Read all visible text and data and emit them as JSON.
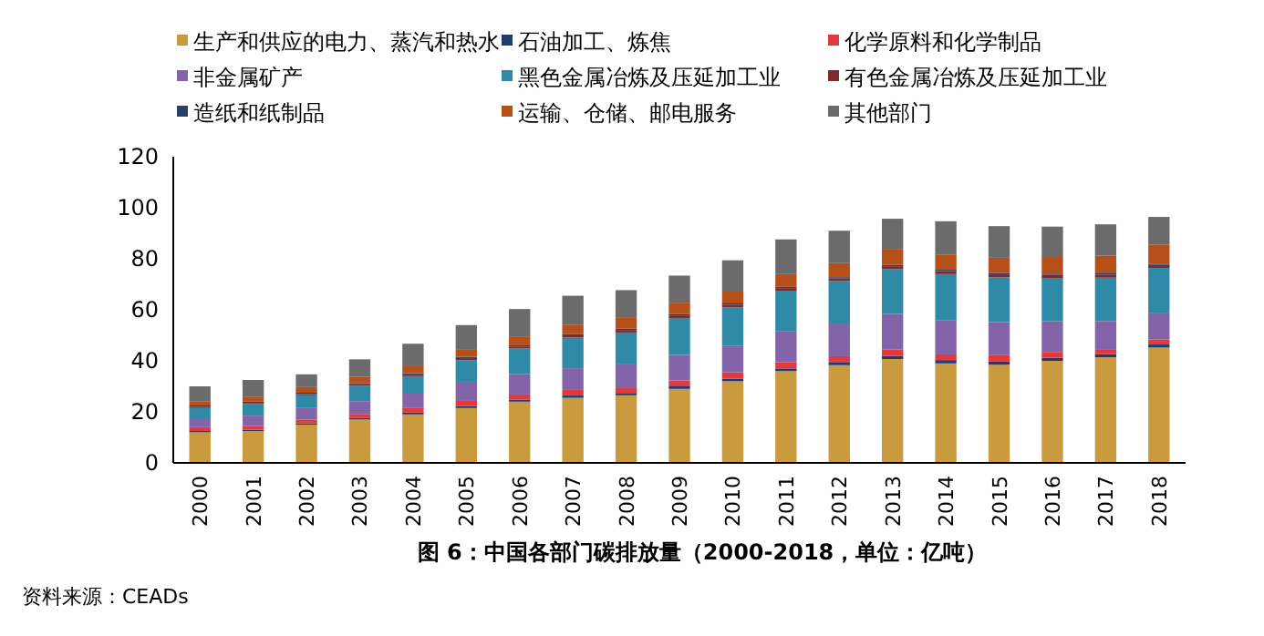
{
  "chart_data": {
    "type": "bar",
    "stacked": true,
    "title": "图 6：中国各部门碳排放量（2000-2018，单位：亿吨）",
    "annotations": [
      "资料来源：CEADs"
    ],
    "categories": [
      "2000",
      "2001",
      "2002",
      "2003",
      "2004",
      "2005",
      "2006",
      "2007",
      "2008",
      "2009",
      "2010",
      "2011",
      "2012",
      "2013",
      "2014",
      "2015",
      "2016",
      "2017",
      "2018"
    ],
    "ylim": [
      0,
      120
    ],
    "yticks": [
      0,
      20,
      40,
      60,
      80,
      100,
      120
    ],
    "legend": "top",
    "grid": false,
    "series": [
      {
        "name": "生产和供应的电力、蒸汽和热水",
        "color": "#c99a3e",
        "values": [
          12,
          12.5,
          15,
          17,
          19,
          21.5,
          24,
          25.5,
          26.5,
          29,
          32,
          36,
          38.3,
          40.7,
          39,
          38.5,
          40,
          41.4,
          45.2
        ]
      },
      {
        "name": "石油加工、炼焦",
        "color": "#1f3b73",
        "values": [
          0.5,
          0.5,
          0.5,
          0.6,
          0.7,
          0.8,
          0.8,
          0.9,
          0.9,
          1,
          1,
          1,
          1,
          1.2,
          1.3,
          1.2,
          1.2,
          1.2,
          1.2
        ]
      },
      {
        "name": "化学原料和化学制品",
        "color": "#e03a3e",
        "values": [
          1.5,
          1.5,
          1.5,
          1.6,
          1.8,
          2,
          2,
          2.2,
          2.2,
          2.3,
          2.5,
          2.5,
          2.5,
          2.5,
          2.2,
          2.5,
          2.3,
          2,
          2
        ]
      },
      {
        "name": "非金属矿产",
        "color": "#8464a8",
        "values": [
          3.5,
          4,
          4.5,
          5,
          6,
          7.5,
          8,
          8.5,
          9,
          10,
          10.5,
          12,
          12.5,
          14,
          13.5,
          13,
          12,
          11,
          10.5
        ]
      },
      {
        "name": "黑色金属冶炼及压延加工业",
        "color": "#2f8aa8",
        "values": [
          4,
          4.5,
          5,
          6,
          6.5,
          8.5,
          10,
          12,
          12.5,
          14.5,
          15,
          16,
          17,
          17.5,
          18,
          17.5,
          17,
          17,
          17.5
        ]
      },
      {
        "name": "有色金属冶炼及压延加工业",
        "color": "#7b2c2c",
        "values": [
          0.5,
          0.5,
          0.5,
          0.6,
          0.7,
          0.8,
          0.8,
          0.9,
          1,
          1,
          1,
          1,
          1,
          1.2,
          1.2,
          1.2,
          1.2,
          1.2,
          1.2
        ]
      },
      {
        "name": "造纸和纸制品",
        "color": "#2b3f6b",
        "values": [
          0.5,
          0.5,
          0.5,
          0.5,
          0.5,
          0.5,
          0.5,
          0.5,
          0.5,
          0.5,
          0.5,
          0.5,
          0.5,
          0.5,
          0.5,
          0.5,
          0.5,
          0.5,
          0.5
        ]
      },
      {
        "name": "运输、仓储、邮电服务",
        "color": "#b5501a",
        "values": [
          1.7,
          2,
          2.2,
          2.5,
          3,
          3,
          3.5,
          3.7,
          4.5,
          4.5,
          5,
          5,
          5.5,
          6,
          6,
          6,
          6.5,
          7,
          7.5
        ]
      },
      {
        "name": "其他部门",
        "color": "#6b6b6b",
        "values": [
          5.8,
          6.5,
          5,
          6.8,
          8.5,
          9.4,
          10.7,
          11.3,
          10.6,
          10.6,
          11.9,
          13.6,
          12.7,
          12.1,
          13,
          12.4,
          11.9,
          12.2,
          10.8
        ]
      }
    ]
  }
}
